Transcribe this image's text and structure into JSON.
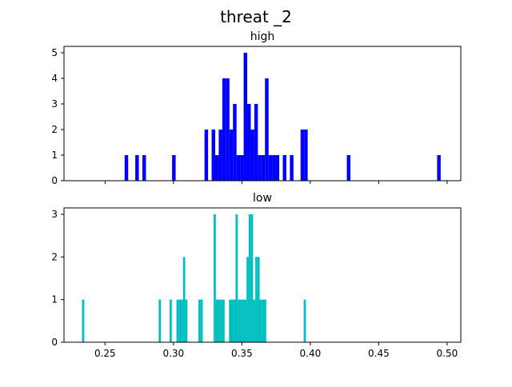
{
  "figure": {
    "title": "threat _2"
  },
  "chart_data": [
    {
      "type": "bar",
      "subtype": "histogram",
      "title": "high",
      "xlim": [
        0.22,
        0.51
      ],
      "ylim": [
        0,
        5.25
      ],
      "xticks": [
        0.25,
        0.3,
        0.35,
        0.4,
        0.45,
        0.5
      ],
      "xtick_labels": [],
      "yticks": [
        0,
        1,
        2,
        3,
        4,
        5
      ],
      "ytick_labels": [
        "0",
        "1",
        "2",
        "3",
        "4",
        "5"
      ],
      "bin_width": 0.00261,
      "color": "#0000ff",
      "bins": [
        {
          "x": 0.2656,
          "count": 1
        },
        {
          "x": 0.2734,
          "count": 1
        },
        {
          "x": 0.2786,
          "count": 1
        },
        {
          "x": 0.3003,
          "count": 1
        },
        {
          "x": 0.324,
          "count": 2
        },
        {
          "x": 0.3292,
          "count": 2
        },
        {
          "x": 0.3318,
          "count": 1
        },
        {
          "x": 0.3344,
          "count": 2
        },
        {
          "x": 0.337,
          "count": 4
        },
        {
          "x": 0.3396,
          "count": 4
        },
        {
          "x": 0.3422,
          "count": 2
        },
        {
          "x": 0.3448,
          "count": 3
        },
        {
          "x": 0.3474,
          "count": 1
        },
        {
          "x": 0.35,
          "count": 1
        },
        {
          "x": 0.3526,
          "count": 5
        },
        {
          "x": 0.3552,
          "count": 3
        },
        {
          "x": 0.3578,
          "count": 2
        },
        {
          "x": 0.3604,
          "count": 3
        },
        {
          "x": 0.363,
          "count": 1
        },
        {
          "x": 0.3656,
          "count": 1
        },
        {
          "x": 0.3682,
          "count": 4
        },
        {
          "x": 0.3708,
          "count": 1
        },
        {
          "x": 0.3734,
          "count": 1
        },
        {
          "x": 0.376,
          "count": 1
        },
        {
          "x": 0.3812,
          "count": 1
        },
        {
          "x": 0.3864,
          "count": 1
        },
        {
          "x": 0.3942,
          "count": 2
        },
        {
          "x": 0.3968,
          "count": 2
        },
        {
          "x": 0.428,
          "count": 1
        },
        {
          "x": 0.494,
          "count": 1
        }
      ]
    },
    {
      "type": "bar",
      "subtype": "histogram",
      "title": "low",
      "xlim": [
        0.22,
        0.51
      ],
      "ylim": [
        0,
        3.15
      ],
      "xticks": [
        0.25,
        0.3,
        0.35,
        0.4,
        0.45,
        0.5
      ],
      "xtick_labels": [
        "0.25",
        "0.30",
        "0.35",
        "0.40",
        "0.45",
        "0.50"
      ],
      "yticks": [
        0,
        1,
        2,
        3
      ],
      "ytick_labels": [
        "0",
        "1",
        "2",
        "3"
      ],
      "bin_width": 0.00161,
      "color": "#00bfbf",
      "bins": [
        {
          "x": 0.234,
          "count": 1
        },
        {
          "x": 0.29,
          "count": 1
        },
        {
          "x": 0.298,
          "count": 1
        },
        {
          "x": 0.303,
          "count": 1
        },
        {
          "x": 0.3046,
          "count": 1
        },
        {
          "x": 0.3062,
          "count": 1
        },
        {
          "x": 0.3078,
          "count": 2
        },
        {
          "x": 0.3094,
          "count": 1
        },
        {
          "x": 0.319,
          "count": 1
        },
        {
          "x": 0.3206,
          "count": 1
        },
        {
          "x": 0.3302,
          "count": 3
        },
        {
          "x": 0.3318,
          "count": 1
        },
        {
          "x": 0.3334,
          "count": 1
        },
        {
          "x": 0.335,
          "count": 1
        },
        {
          "x": 0.3366,
          "count": 1
        },
        {
          "x": 0.3414,
          "count": 1
        },
        {
          "x": 0.343,
          "count": 1
        },
        {
          "x": 0.3446,
          "count": 1
        },
        {
          "x": 0.3462,
          "count": 3
        },
        {
          "x": 0.3478,
          "count": 1
        },
        {
          "x": 0.3494,
          "count": 1
        },
        {
          "x": 0.351,
          "count": 1
        },
        {
          "x": 0.3526,
          "count": 1
        },
        {
          "x": 0.3542,
          "count": 2
        },
        {
          "x": 0.3558,
          "count": 3
        },
        {
          "x": 0.3574,
          "count": 3
        },
        {
          "x": 0.359,
          "count": 1
        },
        {
          "x": 0.3606,
          "count": 2
        },
        {
          "x": 0.3622,
          "count": 2
        },
        {
          "x": 0.3638,
          "count": 1
        },
        {
          "x": 0.3654,
          "count": 1
        },
        {
          "x": 0.367,
          "count": 1
        },
        {
          "x": 0.396,
          "count": 1
        }
      ]
    }
  ]
}
